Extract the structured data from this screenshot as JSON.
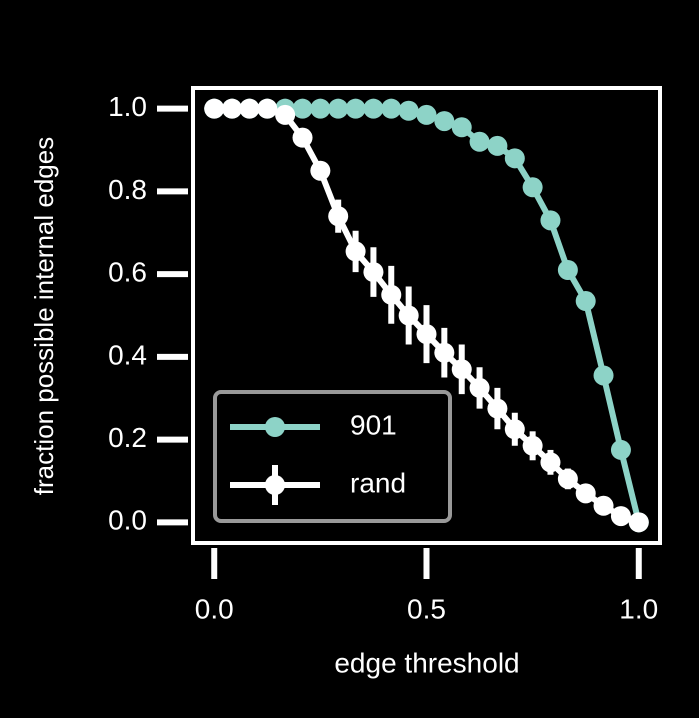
{
  "chart_data": {
    "type": "line",
    "xlabel": "edge threshold",
    "ylabel": "fraction possible internal edges",
    "x": [
      0,
      0.042,
      0.083,
      0.125,
      0.167,
      0.208,
      0.25,
      0.292,
      0.333,
      0.375,
      0.417,
      0.458,
      0.5,
      0.542,
      0.583,
      0.625,
      0.667,
      0.708,
      0.75,
      0.792,
      0.833,
      0.875,
      0.917,
      0.958,
      1
    ],
    "series": [
      {
        "name": "901",
        "color": "#8dd3c7",
        "values": [
          1,
          1,
          1,
          1,
          1,
          1,
          1,
          1,
          1,
          1,
          1,
          0.995,
          0.985,
          0.97,
          0.955,
          0.92,
          0.91,
          0.88,
          0.81,
          0.73,
          0.61,
          0.535,
          0.355,
          0.175,
          0
        ]
      },
      {
        "name": "rand",
        "color": "#ffffff",
        "values": [
          1,
          1,
          1,
          1,
          0.985,
          0.93,
          0.85,
          0.74,
          0.655,
          0.605,
          0.55,
          0.5,
          0.455,
          0.41,
          0.37,
          0.325,
          0.275,
          0.225,
          0.185,
          0.145,
          0.105,
          0.07,
          0.04,
          0.015,
          0
        ],
        "errors": [
          0,
          0,
          0,
          0,
          0.005,
          0.01,
          0.02,
          0.04,
          0.05,
          0.06,
          0.07,
          0.07,
          0.07,
          0.06,
          0.06,
          0.05,
          0.05,
          0.04,
          0.035,
          0.03,
          0.025,
          0.02,
          0.01,
          0.005,
          0
        ]
      }
    ],
    "xlim": [
      -0.05,
      1.05
    ],
    "ylim": [
      -0.05,
      1.05
    ],
    "xticks": [
      {
        "value": 0,
        "label": "0.0"
      },
      0.5,
      {
        "value": 1,
        "label": "1.0"
      }
    ],
    "yticks": [
      {
        "value": 0,
        "label": "0.0"
      },
      0.2,
      0.4,
      0.6,
      0.8,
      {
        "value": 1,
        "label": "1.0"
      }
    ],
    "legend": "lower left"
  }
}
